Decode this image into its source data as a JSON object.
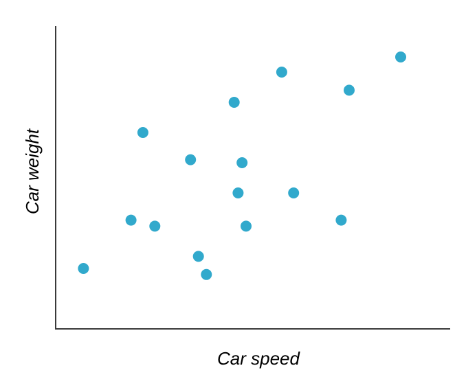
{
  "chart_data": {
    "type": "scatter",
    "title": "",
    "xlabel": "Car speed",
    "ylabel": "Car weight",
    "xlim": [
      0,
      100
    ],
    "ylim": [
      0,
      100
    ],
    "grid": false,
    "ticks": false,
    "point_color": "#31a9cc",
    "axis_color": "#3a3a3a",
    "points": [
      {
        "x": 7,
        "y": 20
      },
      {
        "x": 19,
        "y": 36
      },
      {
        "x": 22,
        "y": 65
      },
      {
        "x": 25,
        "y": 34
      },
      {
        "x": 34,
        "y": 56
      },
      {
        "x": 36,
        "y": 24
      },
      {
        "x": 38,
        "y": 18
      },
      {
        "x": 45,
        "y": 75
      },
      {
        "x": 46,
        "y": 45
      },
      {
        "x": 47,
        "y": 55
      },
      {
        "x": 48,
        "y": 34
      },
      {
        "x": 57,
        "y": 85
      },
      {
        "x": 60,
        "y": 45
      },
      {
        "x": 72,
        "y": 36
      },
      {
        "x": 74,
        "y": 79
      },
      {
        "x": 87,
        "y": 90
      }
    ]
  }
}
